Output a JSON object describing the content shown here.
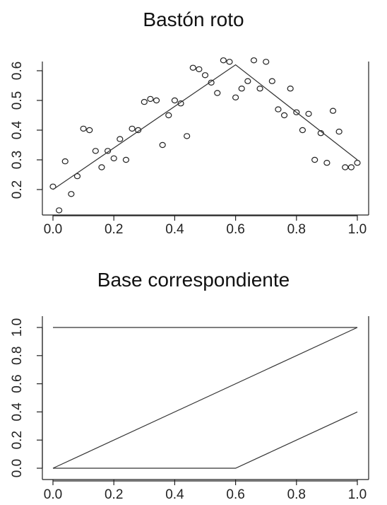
{
  "chart_data": [
    {
      "type": "scatter",
      "title": "Bastón roto",
      "xlim": [
        0,
        1
      ],
      "ylim": [
        0.115,
        0.655
      ],
      "xticks": [
        "0.0",
        "0.2",
        "0.4",
        "0.6",
        "0.8",
        "1.0"
      ],
      "yticks": [
        "0.2",
        "0.3",
        "0.4",
        "0.5",
        "0.6"
      ],
      "points": {
        "x": [
          0.0,
          0.02,
          0.04,
          0.06,
          0.08,
          0.1,
          0.12,
          0.14,
          0.16,
          0.18,
          0.2,
          0.22,
          0.24,
          0.26,
          0.28,
          0.3,
          0.32,
          0.34,
          0.36,
          0.38,
          0.4,
          0.42,
          0.44,
          0.46,
          0.48,
          0.5,
          0.52,
          0.54,
          0.56,
          0.58,
          0.6,
          0.62,
          0.64,
          0.66,
          0.68,
          0.7,
          0.72,
          0.74,
          0.76,
          0.78,
          0.8,
          0.82,
          0.84,
          0.86,
          0.88,
          0.9,
          0.92,
          0.94,
          0.96,
          0.98,
          1.0
        ],
        "y": [
          0.21,
          0.13,
          0.295,
          0.185,
          0.245,
          0.405,
          0.4,
          0.33,
          0.275,
          0.33,
          0.305,
          0.37,
          0.3,
          0.405,
          0.4,
          0.495,
          0.505,
          0.5,
          0.35,
          0.45,
          0.5,
          0.49,
          0.38,
          0.61,
          0.605,
          0.585,
          0.56,
          0.525,
          0.635,
          0.63,
          0.51,
          0.54,
          0.565,
          0.635,
          0.54,
          0.63,
          0.565,
          0.47,
          0.45,
          0.54,
          0.46,
          0.4,
          0.455,
          0.3,
          0.39,
          0.29,
          0.465,
          0.395,
          0.275,
          0.275,
          0.29
        ]
      },
      "line": {
        "x": [
          0.0,
          0.6,
          1.0
        ],
        "y": [
          0.2,
          0.62,
          0.3
        ]
      }
    },
    {
      "type": "line",
      "title": "Base correspondiente",
      "xlim": [
        0,
        1
      ],
      "ylim": [
        0,
        1
      ],
      "xticks": [
        "0.0",
        "0.2",
        "0.4",
        "0.6",
        "0.8",
        "1.0"
      ],
      "yticks": [
        "0.0",
        "0.2",
        "0.4",
        "0.6",
        "0.8",
        "1.0"
      ],
      "series": [
        {
          "x": [
            0.0,
            1.0
          ],
          "values": [
            1.0,
            1.0
          ]
        },
        {
          "x": [
            0.0,
            1.0
          ],
          "values": [
            0.0,
            1.0
          ]
        },
        {
          "x": [
            0.0,
            0.6,
            1.0
          ],
          "values": [
            0.0,
            0.0,
            0.4
          ]
        }
      ]
    }
  ]
}
